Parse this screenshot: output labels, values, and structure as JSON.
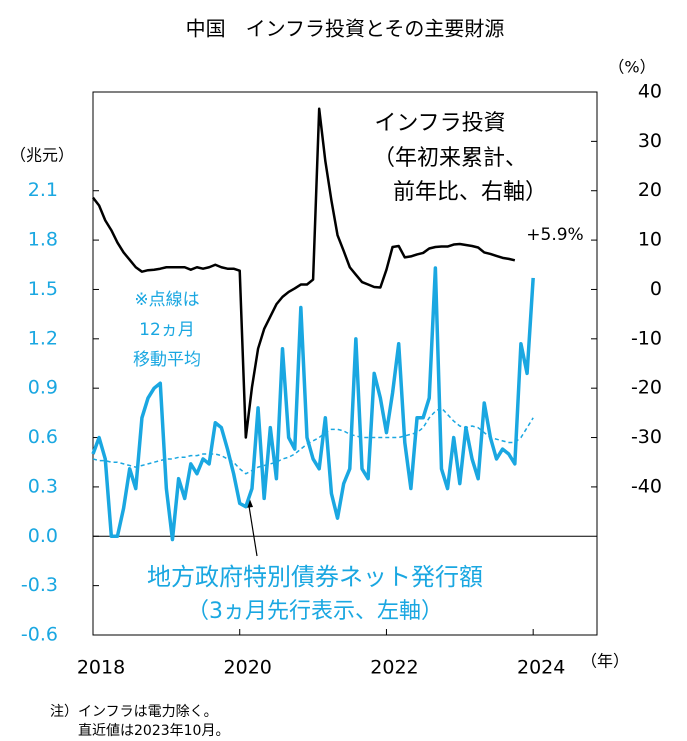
{
  "chart_data": {
    "type": "line",
    "title": "中国　インフラ投資とその主要財源",
    "y_label": "（兆元）",
    "y2_label": "（%）",
    "x_label": "（年）",
    "x": [
      2018,
      2018.083,
      2018.167,
      2018.25,
      2018.333,
      2018.417,
      2018.5,
      2018.583,
      2018.667,
      2018.75,
      2018.833,
      2018.917,
      2019,
      2019.083,
      2019.167,
      2019.25,
      2019.333,
      2019.417,
      2019.5,
      2019.583,
      2019.667,
      2019.75,
      2019.833,
      2019.917,
      2020,
      2020.083,
      2020.167,
      2020.25,
      2020.333,
      2020.417,
      2020.5,
      2020.583,
      2020.667,
      2020.75,
      2020.833,
      2020.917,
      2021,
      2021.083,
      2021.167,
      2021.25,
      2021.333,
      2021.417,
      2021.5,
      2021.583,
      2021.667,
      2021.75,
      2021.833,
      2021.917,
      2022,
      2022.083,
      2022.167,
      2022.25,
      2022.333,
      2022.417,
      2022.5,
      2022.583,
      2022.667,
      2022.75,
      2022.833,
      2022.917,
      2023,
      2023.083,
      2023.167,
      2023.25,
      2023.333,
      2023.417,
      2023.5,
      2023.583,
      2023.667,
      2023.75,
      2023.833,
      2023.917,
      2024
    ],
    "series": [
      {
        "name": "インフラ投資",
        "color": "#000000",
        "axis": "y2",
        "style": "solid",
        "values": [
          18.6,
          17,
          14,
          12,
          9.5,
          7.5,
          6,
          4.5,
          3.6,
          3.9,
          4,
          4.2,
          4.5,
          4.5,
          4.5,
          4.5,
          4,
          4.5,
          4.2,
          4.5,
          5,
          4.5,
          4.2,
          4.2,
          3.8,
          -30,
          -19.8,
          -12,
          -8,
          -5.5,
          -3,
          -1.5,
          -0.5,
          0.2,
          1,
          1,
          2,
          36.6,
          26,
          18,
          11,
          7.8,
          4.5,
          3,
          1.5,
          1,
          0.5,
          0.4,
          4,
          8.6,
          8.8,
          6.5,
          6.7,
          7.1,
          7.4,
          8.3,
          8.6,
          8.7,
          8.7,
          9.1,
          9.2,
          9,
          8.8,
          8.5,
          7.5,
          7.2,
          6.8,
          6.4,
          6.2,
          5.9,
          null,
          null,
          null
        ]
      },
      {
        "name": "地方政府特別債券ネット発行額",
        "color": "#1aa7e1",
        "axis": "y",
        "style": "solid",
        "values": [
          0.5,
          0.6,
          0.47,
          0,
          0,
          0.17,
          0.41,
          0.29,
          0.72,
          0.84,
          0.9,
          0.93,
          0.29,
          -0.02,
          0.35,
          0.23,
          0.44,
          0.38,
          0.47,
          0.44,
          0.69,
          0.66,
          0.53,
          0.38,
          0.2,
          0.18,
          0.29,
          0.78,
          0.23,
          0.66,
          0.35,
          1.14,
          0.6,
          0.53,
          1.39,
          0.6,
          0.47,
          0.41,
          0.72,
          0.26,
          0.11,
          0.32,
          0.41,
          1.2,
          0.41,
          0.35,
          0.99,
          0.84,
          0.63,
          0.87,
          1.17,
          0.57,
          0.29,
          0.72,
          0.72,
          0.84,
          1.63,
          0.41,
          0.29,
          0.6,
          0.32,
          0.66,
          0.47,
          0.35,
          0.81,
          0.6,
          0.47,
          0.53,
          0.5,
          0.44,
          1.17,
          0.99,
          1.57
        ]
      },
      {
        "color": "#1aa7e1",
        "axis": "y",
        "style": "dashed",
        "values": [
          0.47,
          0.46,
          0.46,
          0.45,
          0.45,
          0.44,
          0.43,
          0.42,
          0.43,
          0.44,
          0.45,
          0.46,
          0.47,
          0.47,
          0.48,
          0.48,
          0.49,
          0.49,
          0.5,
          0.5,
          0.5,
          0.49,
          0.47,
          0.45,
          0.41,
          0.38,
          0.4,
          0.42,
          0.43,
          0.44,
          0.45,
          0.47,
          0.48,
          0.5,
          0.53,
          0.56,
          0.58,
          0.6,
          0.63,
          0.65,
          0.65,
          0.64,
          0.62,
          0.61,
          0.6,
          0.6,
          0.6,
          0.6,
          0.6,
          0.6,
          0.6,
          0.61,
          0.62,
          0.63,
          0.66,
          0.72,
          0.76,
          0.78,
          0.74,
          0.7,
          0.67,
          0.66,
          0.67,
          0.66,
          0.63,
          0.6,
          0.59,
          0.58,
          0.57,
          0.57,
          0.6,
          0.66,
          0.72
        ]
      }
    ],
    "annotations": [
      "（年初来累計、",
      "前年比、右軸）",
      "+5.9%",
      "※点線は",
      "12ヵ月",
      "移動平均",
      "（3ヵ月先行表示、左軸）"
    ],
    "note": [
      "注）インフラは電力除く。",
      "直近値は2023年10月。"
    ],
    "xlim": [
      2018,
      2024.87
    ],
    "xticks": [
      2018,
      2020,
      2022,
      2024
    ],
    "ylim": [
      -0.6,
      2.7
    ],
    "yticks": [
      -0.6,
      -0.3,
      {
        "value": 0,
        "label": "0.0"
      },
      0.3,
      0.6,
      0.9,
      1.2,
      1.5,
      1.8,
      2.1
    ],
    "y2lim": [
      -70,
      40
    ],
    "y2ticks": [
      -40,
      -30,
      -20,
      -10,
      0,
      10,
      20,
      30,
      40
    ],
    "grid": false
  }
}
